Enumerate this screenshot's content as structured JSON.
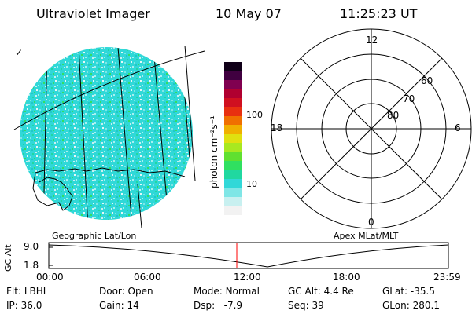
{
  "header": {
    "instrument": "Ultraviolet Imager",
    "date": "10 May 07",
    "time": "11:25:23 UT"
  },
  "imager": {
    "left_label": "Geographic Lat/Lon",
    "right_label": "Apex MLat/MLT",
    "tick_mark": "✓"
  },
  "colorbar": {
    "unit_label": "photon cm⁻²s⁻¹",
    "ticks": [
      "100",
      "10"
    ],
    "colors": [
      "#f2f2f2",
      "#c8f0f0",
      "#7fe6e6",
      "#30d8d8",
      "#20d8a0",
      "#30e060",
      "#60e030",
      "#a8e820",
      "#e0e010",
      "#f0b000",
      "#f07000",
      "#e83010",
      "#d01020",
      "#b00030",
      "#800050",
      "#400040",
      "#100018"
    ]
  },
  "polar": {
    "mlt_labels": {
      "top": "12",
      "left": "18",
      "right": "6",
      "bottom": "0"
    },
    "lat_labels": [
      "60",
      "70",
      "80"
    ]
  },
  "altitude_plot": {
    "ylabel": "GC Alt",
    "yticks": [
      "9.0",
      "1.8"
    ],
    "xticks": [
      "00:00",
      "06:00",
      "12:00",
      "18:00",
      "23:59"
    ],
    "current_time_color": "#ff0000"
  },
  "status": {
    "row1": [
      {
        "label": "Flt:",
        "value": "LBHL"
      },
      {
        "label": "Door:",
        "value": "Open"
      },
      {
        "label": "Mode:",
        "value": "Normal"
      },
      {
        "label": "GC Alt:",
        "value": "4.4 Re"
      },
      {
        "label": "GLat:",
        "value": "-35.5"
      }
    ],
    "row2": [
      {
        "label": "IP:",
        "value": "36.0"
      },
      {
        "label": "Gain:",
        "value": "14"
      },
      {
        "label": "Dsp:",
        "value": "  -7.9"
      },
      {
        "label": "Seq:",
        "value": "39"
      },
      {
        "label": "GLon:",
        "value": "280.1"
      }
    ]
  }
}
